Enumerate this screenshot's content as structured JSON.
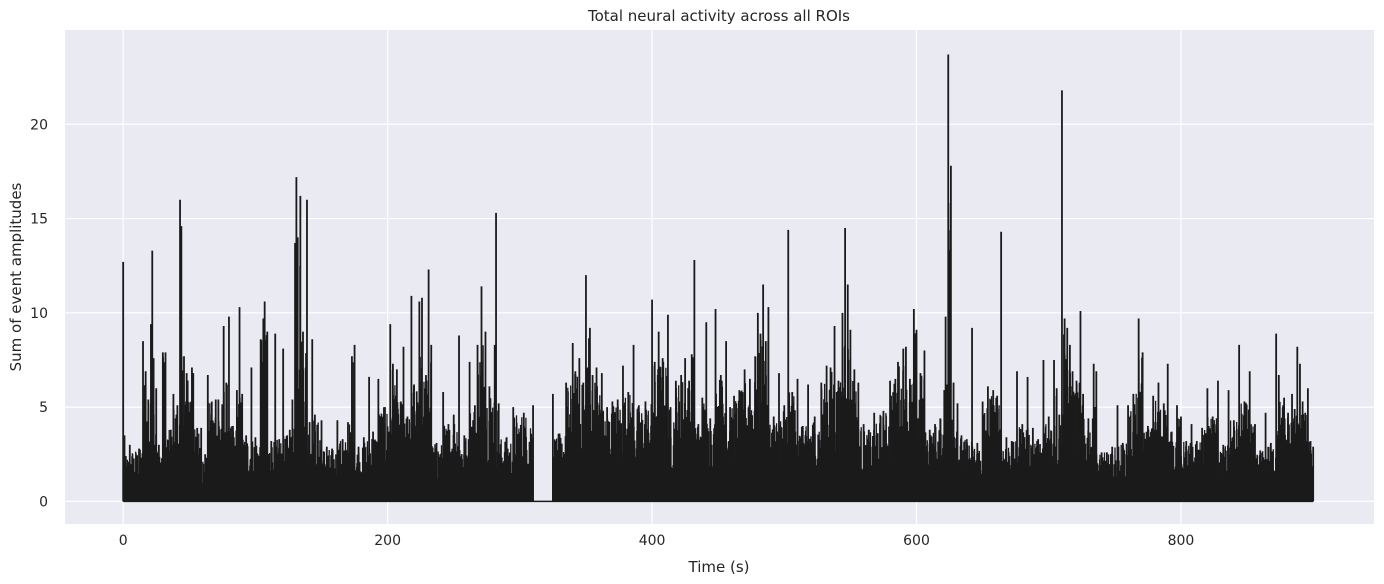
{
  "chart_data": {
    "type": "line",
    "title": "Total neural activity across all ROIs",
    "xlabel": "Time (s)",
    "ylabel": "Sum of event amplitudes",
    "xlim": [
      -44,
      946
    ],
    "ylim": [
      -1.2,
      25.0
    ],
    "xticks": [
      0,
      200,
      400,
      600,
      800
    ],
    "yticks": [
      0,
      5,
      10,
      15,
      20
    ],
    "grid": true,
    "colors": {
      "background": "#eaeaf2",
      "grid": "#ffffff",
      "line": "#1a1a1a"
    },
    "series": [
      {
        "peaks": [
          [
            0,
            12.7
          ],
          [
            1,
            3.5
          ],
          [
            2,
            2.4
          ],
          [
            5,
            3.0
          ],
          [
            12,
            2.8
          ],
          [
            15,
            8.5
          ],
          [
            17,
            6.9
          ],
          [
            19,
            5.4
          ],
          [
            21,
            9.4
          ],
          [
            22,
            13.3
          ],
          [
            23,
            7.6
          ],
          [
            25,
            6.0
          ],
          [
            27,
            3.0
          ],
          [
            30,
            7.9
          ],
          [
            32,
            7.9
          ],
          [
            36,
            3.8
          ],
          [
            38,
            5.7
          ],
          [
            41,
            5.1
          ],
          [
            43,
            16.0
          ],
          [
            44,
            14.6
          ],
          [
            46,
            7.7
          ],
          [
            48,
            6.8
          ],
          [
            52,
            7.1
          ],
          [
            53,
            6.8
          ],
          [
            56,
            3.9
          ],
          [
            59,
            3.9
          ],
          [
            62,
            2.5
          ],
          [
            64,
            6.7
          ],
          [
            67,
            5.3
          ],
          [
            70,
            5.4
          ],
          [
            72,
            5.4
          ],
          [
            76,
            9.3
          ],
          [
            78,
            6.3
          ],
          [
            80,
            9.8
          ],
          [
            83,
            4.0
          ],
          [
            86,
            5.9
          ],
          [
            88,
            10.3
          ],
          [
            90,
            5.7
          ],
          [
            93,
            3.5
          ],
          [
            97,
            7.1
          ],
          [
            100,
            3.4
          ],
          [
            104,
            8.6
          ],
          [
            106,
            9.7
          ],
          [
            107,
            10.6
          ],
          [
            109,
            9.0
          ],
          [
            112,
            3.2
          ],
          [
            115,
            8.9
          ],
          [
            118,
            3.3
          ],
          [
            121,
            8.1
          ],
          [
            124,
            3.5
          ],
          [
            126,
            3.8
          ],
          [
            128,
            5.4
          ],
          [
            130,
            13.7
          ],
          [
            131,
            17.2
          ],
          [
            132,
            14.0
          ],
          [
            134,
            16.2
          ],
          [
            136,
            9.0
          ],
          [
            139,
            16.0
          ],
          [
            141,
            4.2
          ],
          [
            143,
            8.6
          ],
          [
            145,
            4.6
          ],
          [
            150,
            4.3
          ],
          [
            154,
            2.9
          ],
          [
            158,
            2.8
          ],
          [
            162,
            4.3
          ],
          [
            166,
            3.3
          ],
          [
            170,
            4.2
          ],
          [
            173,
            7.7
          ],
          [
            175,
            8.3
          ],
          [
            178,
            2.9
          ],
          [
            182,
            3.4
          ],
          [
            186,
            6.6
          ],
          [
            189,
            3.7
          ],
          [
            193,
            6.5
          ],
          [
            198,
            5.0
          ],
          [
            202,
            9.4
          ],
          [
            204,
            7.3
          ],
          [
            207,
            7.0
          ],
          [
            210,
            5.3
          ],
          [
            212,
            8.2
          ],
          [
            215,
            4.5
          ],
          [
            218,
            10.9
          ],
          [
            220,
            6.2
          ],
          [
            224,
            10.6
          ],
          [
            226,
            10.8
          ],
          [
            229,
            6.7
          ],
          [
            231,
            12.3
          ],
          [
            233,
            8.3
          ],
          [
            237,
            3.1
          ],
          [
            242,
            5.8
          ],
          [
            246,
            4.1
          ],
          [
            250,
            4.6
          ],
          [
            254,
            8.8
          ],
          [
            258,
            3.5
          ],
          [
            262,
            7.4
          ],
          [
            266,
            5.1
          ],
          [
            268,
            8.3
          ],
          [
            271,
            11.4
          ],
          [
            274,
            9.0
          ],
          [
            277,
            6.1
          ],
          [
            281,
            8.3
          ],
          [
            282,
            15.3
          ],
          [
            284,
            5.2
          ],
          [
            290,
            3.4
          ],
          [
            295,
            5.0
          ],
          [
            303,
            4.7
          ],
          [
            310,
            5.1
          ],
          [
            325,
            5.7
          ],
          [
            330,
            3.6
          ],
          [
            335,
            6.3
          ],
          [
            340,
            8.4
          ],
          [
            342,
            6.9
          ],
          [
            345,
            7.6
          ],
          [
            348,
            6.3
          ],
          [
            350,
            12.0
          ],
          [
            353,
            9.2
          ],
          [
            355,
            6.7
          ],
          [
            358,
            7.1
          ],
          [
            362,
            6.8
          ],
          [
            366,
            5.0
          ],
          [
            370,
            5.3
          ],
          [
            374,
            5.4
          ],
          [
            378,
            7.2
          ],
          [
            382,
            5.8
          ],
          [
            386,
            8.3
          ],
          [
            390,
            5.1
          ],
          [
            395,
            5.3
          ],
          [
            400,
            10.7
          ],
          [
            402,
            7.4
          ],
          [
            405,
            9.0
          ],
          [
            408,
            7.6
          ],
          [
            412,
            9.9
          ],
          [
            414,
            5.0
          ],
          [
            418,
            6.4
          ],
          [
            422,
            6.7
          ],
          [
            425,
            7.6
          ],
          [
            428,
            6.4
          ],
          [
            430,
            7.8
          ],
          [
            432,
            12.8
          ],
          [
            435,
            4.1
          ],
          [
            438,
            5.5
          ],
          [
            441,
            9.5
          ],
          [
            444,
            4.4
          ],
          [
            448,
            10.2
          ],
          [
            452,
            6.7
          ],
          [
            456,
            8.5
          ],
          [
            459,
            5.0
          ],
          [
            462,
            5.6
          ],
          [
            466,
            5.9
          ],
          [
            470,
            7.0
          ],
          [
            474,
            6.5
          ],
          [
            478,
            7.7
          ],
          [
            480,
            10.0
          ],
          [
            482,
            8.9
          ],
          [
            484,
            11.5
          ],
          [
            486,
            8.5
          ],
          [
            488,
            10.3
          ],
          [
            492,
            4.5
          ],
          [
            496,
            6.8
          ],
          [
            500,
            5.1
          ],
          [
            503,
            14.4
          ],
          [
            506,
            5.8
          ],
          [
            510,
            6.5
          ],
          [
            514,
            4.0
          ],
          [
            518,
            6.2
          ],
          [
            523,
            4.5
          ],
          [
            528,
            6.3
          ],
          [
            532,
            7.2
          ],
          [
            535,
            7.1
          ],
          [
            538,
            9.3
          ],
          [
            541,
            6.4
          ],
          [
            544,
            10.0
          ],
          [
            546,
            14.5
          ],
          [
            548,
            11.5
          ],
          [
            550,
            9.1
          ],
          [
            553,
            7.0
          ],
          [
            556,
            6.3
          ],
          [
            560,
            4.1
          ],
          [
            564,
            3.8
          ],
          [
            568,
            4.7
          ],
          [
            575,
            4.8
          ],
          [
            580,
            6.4
          ],
          [
            584,
            6.5
          ],
          [
            586,
            7.4
          ],
          [
            590,
            8.1
          ],
          [
            592,
            8.2
          ],
          [
            595,
            6.5
          ],
          [
            598,
            10.2
          ],
          [
            600,
            9.1
          ],
          [
            603,
            6.8
          ],
          [
            606,
            8.0
          ],
          [
            610,
            3.8
          ],
          [
            614,
            4.1
          ],
          [
            618,
            4.4
          ],
          [
            621,
            5.9
          ],
          [
            622,
            9.8
          ],
          [
            623,
            6.2
          ],
          [
            624,
            23.7
          ],
          [
            626,
            17.8
          ],
          [
            628,
            6.3
          ],
          [
            631,
            5.2
          ],
          [
            634,
            3.5
          ],
          [
            638,
            3.3
          ],
          [
            642,
            9.2
          ],
          [
            646,
            3.1
          ],
          [
            650,
            5.3
          ],
          [
            654,
            6.1
          ],
          [
            658,
            5.9
          ],
          [
            661,
            5.6
          ],
          [
            664,
            14.3
          ],
          [
            668,
            3.4
          ],
          [
            672,
            3.2
          ],
          [
            676,
            6.9
          ],
          [
            680,
            4.1
          ],
          [
            684,
            6.6
          ],
          [
            688,
            3.9
          ],
          [
            692,
            3.3
          ],
          [
            696,
            7.5
          ],
          [
            700,
            4.5
          ],
          [
            704,
            7.5
          ],
          [
            706,
            6.0
          ],
          [
            708,
            4.6
          ],
          [
            710,
            21.8
          ],
          [
            712,
            9.7
          ],
          [
            714,
            9.2
          ],
          [
            716,
            8.3
          ],
          [
            718,
            6.9
          ],
          [
            721,
            6.4
          ],
          [
            724,
            10.1
          ],
          [
            726,
            5.7
          ],
          [
            730,
            4.4
          ],
          [
            734,
            7.3
          ],
          [
            736,
            6.9
          ],
          [
            740,
            2.6
          ],
          [
            744,
            2.6
          ],
          [
            748,
            2.9
          ],
          [
            752,
            5.1
          ],
          [
            756,
            3.1
          ],
          [
            760,
            5.1
          ],
          [
            764,
            5.7
          ],
          [
            768,
            9.7
          ],
          [
            771,
            7.9
          ],
          [
            775,
            4.0
          ],
          [
            779,
            5.6
          ],
          [
            783,
            6.3
          ],
          [
            787,
            5.2
          ],
          [
            790,
            7.3
          ],
          [
            793,
            3.7
          ],
          [
            797,
            5.1
          ],
          [
            800,
            4.5
          ],
          [
            804,
            3.2
          ],
          [
            808,
            4.1
          ],
          [
            812,
            3.2
          ],
          [
            816,
            3.9
          ],
          [
            820,
            6.0
          ],
          [
            824,
            4.5
          ],
          [
            828,
            6.4
          ],
          [
            832,
            3.0
          ],
          [
            836,
            5.9
          ],
          [
            840,
            4.3
          ],
          [
            844,
            8.3
          ],
          [
            848,
            5.3
          ],
          [
            852,
            6.9
          ],
          [
            856,
            4.1
          ],
          [
            860,
            2.7
          ],
          [
            864,
            4.7
          ],
          [
            868,
            3.1
          ],
          [
            872,
            8.9
          ],
          [
            874,
            6.7
          ],
          [
            878,
            5.5
          ],
          [
            881,
            4.7
          ],
          [
            884,
            5.7
          ],
          [
            886,
            4.9
          ],
          [
            888,
            8.2
          ],
          [
            890,
            7.3
          ],
          [
            892,
            5.3
          ],
          [
            894,
            4.7
          ],
          [
            896,
            6.0
          ],
          [
            898,
            3.2
          ],
          [
            900,
            2.9
          ]
        ]
      }
    ]
  }
}
